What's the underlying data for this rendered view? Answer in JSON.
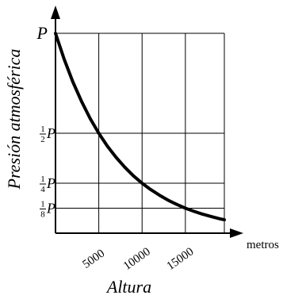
{
  "chart_data": {
    "type": "line",
    "xlabel": "Altura",
    "ylabel": "Presión atmosférica",
    "x_unit": "metros",
    "x_ticks": [
      {
        "value": 5000,
        "label": "5000"
      },
      {
        "value": 10000,
        "label": "10000"
      },
      {
        "value": 15000,
        "label": "15000"
      }
    ],
    "y_ticks": [
      {
        "value": 1,
        "label": "P",
        "whole": "P"
      },
      {
        "value": 0.5,
        "num": "1",
        "den": "2",
        "sym": "P"
      },
      {
        "value": 0.25,
        "num": "1",
        "den": "4",
        "sym": "P"
      },
      {
        "value": 0.125,
        "num": "1",
        "den": "8",
        "sym": "P"
      }
    ],
    "xlim": [
      0,
      19500
    ],
    "ylim": [
      0,
      1
    ],
    "grid": true,
    "series": [
      {
        "x": [
          0,
          1000,
          2000,
          3000,
          4000,
          5000,
          6000,
          7000,
          8000,
          9000,
          10000,
          11000,
          12000,
          13000,
          14000,
          15000,
          16000,
          17000,
          18000,
          19000,
          19500
        ],
        "y": [
          1.0,
          0.871,
          0.758,
          0.66,
          0.574,
          0.5,
          0.435,
          0.379,
          0.33,
          0.287,
          0.25,
          0.218,
          0.19,
          0.165,
          0.144,
          0.125,
          0.109,
          0.095,
          0.083,
          0.072,
          0.067
        ]
      }
    ]
  }
}
